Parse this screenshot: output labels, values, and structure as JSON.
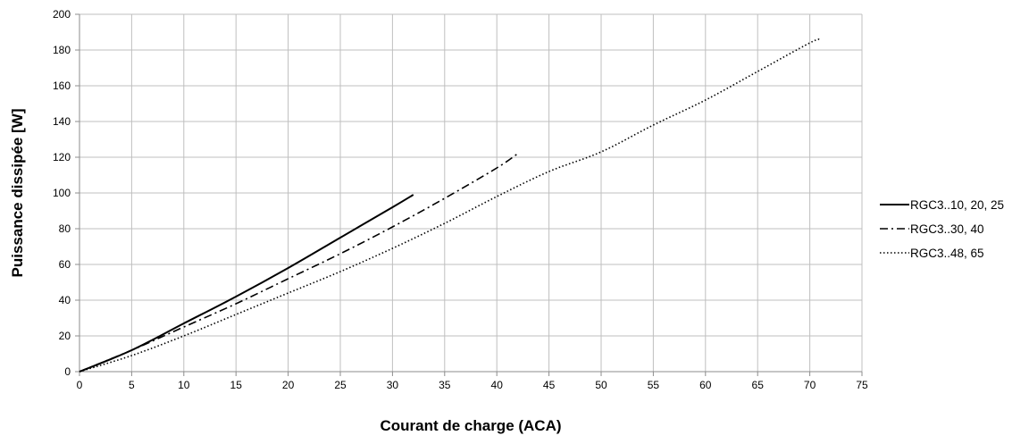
{
  "chart_data": {
    "type": "line",
    "title": "",
    "xlabel": "Courant de charge (ACA)",
    "ylabel": "Puissance dissipée [W]",
    "xlim": [
      0,
      75
    ],
    "ylim": [
      0,
      200
    ],
    "xticks": [
      0,
      5,
      10,
      15,
      20,
      25,
      30,
      35,
      40,
      45,
      50,
      55,
      60,
      65,
      70,
      75
    ],
    "yticks": [
      0,
      20,
      40,
      60,
      80,
      100,
      120,
      140,
      160,
      180,
      200
    ],
    "grid": true,
    "legend_position": "right",
    "series": [
      {
        "name": "RGC3..10, 20, 25",
        "line_style": "solid",
        "x": [
          0,
          5,
          10,
          15,
          20,
          25,
          30,
          32
        ],
        "y": [
          0,
          12,
          27,
          42,
          58,
          75,
          92,
          99
        ]
      },
      {
        "name": "RGC3..30, 40",
        "line_style": "dashdot",
        "x": [
          0,
          5,
          10,
          15,
          20,
          25,
          30,
          35,
          40,
          42
        ],
        "y": [
          0,
          12,
          25,
          38,
          52,
          66,
          81,
          97,
          114,
          122
        ]
      },
      {
        "name": "RGC3..48, 65",
        "line_style": "dotted",
        "x": [
          0,
          5,
          10,
          15,
          20,
          25,
          30,
          35,
          40,
          45,
          50,
          55,
          60,
          65,
          70,
          71
        ],
        "y": [
          0,
          9,
          20,
          32,
          44,
          56,
          69,
          83,
          98,
          112,
          123,
          138,
          152,
          168,
          184,
          186
        ]
      }
    ]
  }
}
